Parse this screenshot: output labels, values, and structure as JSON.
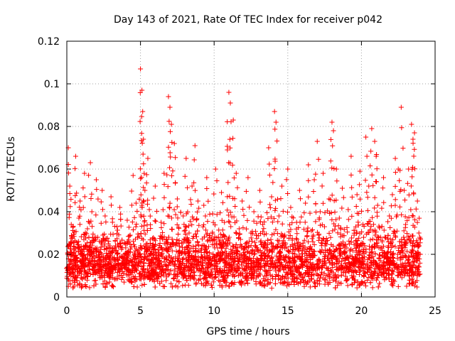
{
  "chart_data": {
    "type": "scatter",
    "title": "Day 143 of 2021, Rate Of TEC Index for receiver p042",
    "xlabel": "GPS time / hours",
    "ylabel": "ROTI / TECUs",
    "xlim": [
      0,
      25
    ],
    "ylim": [
      0,
      0.12
    ],
    "xticks": [
      0,
      5,
      10,
      15,
      20,
      25
    ],
    "yticks": [
      0,
      0.02,
      0.04,
      0.06,
      0.08,
      0.1,
      0.12
    ],
    "xtick_labels": [
      "0",
      "5",
      "10",
      "15",
      "20",
      "25"
    ],
    "ytick_labels": [
      "0",
      "0.02",
      "0.04",
      "0.06",
      "0.08",
      "0.1",
      "0.12"
    ],
    "grid": true,
    "marker": "+",
    "color": "#ff0000",
    "series": [
      {
        "name": "ROTI",
        "x": [
          0.05,
          0.1,
          0.2,
          0.3,
          0.5,
          0.6,
          0.8,
          0.9,
          1.1,
          1.2,
          1.4,
          1.5,
          1.6,
          1.7,
          1.8,
          2.0,
          2.1,
          2.3,
          2.4,
          2.6,
          2.8,
          3.0,
          3.2,
          3.4,
          3.6,
          3.9,
          4.1,
          4.3,
          4.5,
          4.7,
          4.9,
          5.0,
          5.1,
          5.15,
          5.2,
          5.3,
          5.5,
          5.6,
          5.8,
          6.0,
          6.2,
          6.4,
          6.6,
          6.8,
          6.9,
          7.0,
          7.1,
          7.3,
          7.5,
          7.7,
          7.9,
          8.1,
          8.3,
          8.5,
          8.7,
          8.9,
          9.1,
          9.3,
          9.5,
          9.7,
          9.9,
          10.1,
          10.3,
          10.5,
          10.7,
          10.9,
          11.0,
          11.1,
          11.3,
          11.5,
          11.7,
          11.9,
          12.1,
          12.3,
          12.5,
          12.7,
          12.9,
          13.1,
          13.3,
          13.5,
          13.7,
          13.9,
          14.1,
          14.2,
          14.4,
          14.6,
          14.8,
          15.0,
          15.2,
          15.4,
          15.6,
          15.8,
          16.0,
          16.2,
          16.4,
          16.6,
          16.8,
          17.0,
          17.2,
          17.4,
          17.6,
          17.8,
          18.0,
          18.1,
          18.3,
          18.5,
          18.7,
          18.9,
          19.1,
          19.3,
          19.5,
          19.7,
          19.9,
          20.1,
          20.3,
          20.5,
          20.7,
          20.9,
          21.0,
          21.1,
          21.3,
          21.5,
          21.7,
          21.9,
          22.1,
          22.3,
          22.5,
          22.7,
          22.9,
          23.0,
          23.2,
          23.4,
          23.5,
          23.6,
          23.8,
          23.9
        ],
        "y": [
          0.014,
          0.07,
          0.052,
          0.034,
          0.021,
          0.066,
          0.026,
          0.045,
          0.018,
          0.058,
          0.032,
          0.022,
          0.063,
          0.04,
          0.019,
          0.055,
          0.028,
          0.017,
          0.05,
          0.038,
          0.023,
          0.047,
          0.015,
          0.033,
          0.042,
          0.02,
          0.036,
          0.029,
          0.057,
          0.044,
          0.022,
          0.107,
          0.097,
          0.087,
          0.074,
          0.05,
          0.065,
          0.041,
          0.024,
          0.052,
          0.019,
          0.035,
          0.058,
          0.027,
          0.094,
          0.089,
          0.081,
          0.072,
          0.046,
          0.016,
          0.038,
          0.065,
          0.03,
          0.052,
          0.071,
          0.045,
          0.022,
          0.043,
          0.056,
          0.018,
          0.039,
          0.06,
          0.028,
          0.049,
          0.035,
          0.069,
          0.096,
          0.091,
          0.083,
          0.058,
          0.032,
          0.045,
          0.021,
          0.056,
          0.03,
          0.04,
          0.018,
          0.05,
          0.034,
          0.025,
          0.07,
          0.047,
          0.087,
          0.082,
          0.038,
          0.052,
          0.029,
          0.06,
          0.042,
          0.024,
          0.035,
          0.05,
          0.019,
          0.044,
          0.062,
          0.031,
          0.055,
          0.073,
          0.04,
          0.058,
          0.026,
          0.046,
          0.082,
          0.078,
          0.06,
          0.037,
          0.051,
          0.023,
          0.041,
          0.066,
          0.029,
          0.048,
          0.059,
          0.034,
          0.075,
          0.052,
          0.079,
          0.073,
          0.066,
          0.043,
          0.028,
          0.056,
          0.02,
          0.038,
          0.048,
          0.065,
          0.06,
          0.089,
          0.05,
          0.034,
          0.06,
          0.081,
          0.074,
          0.077,
          0.045,
          0.03
        ]
      }
    ]
  }
}
